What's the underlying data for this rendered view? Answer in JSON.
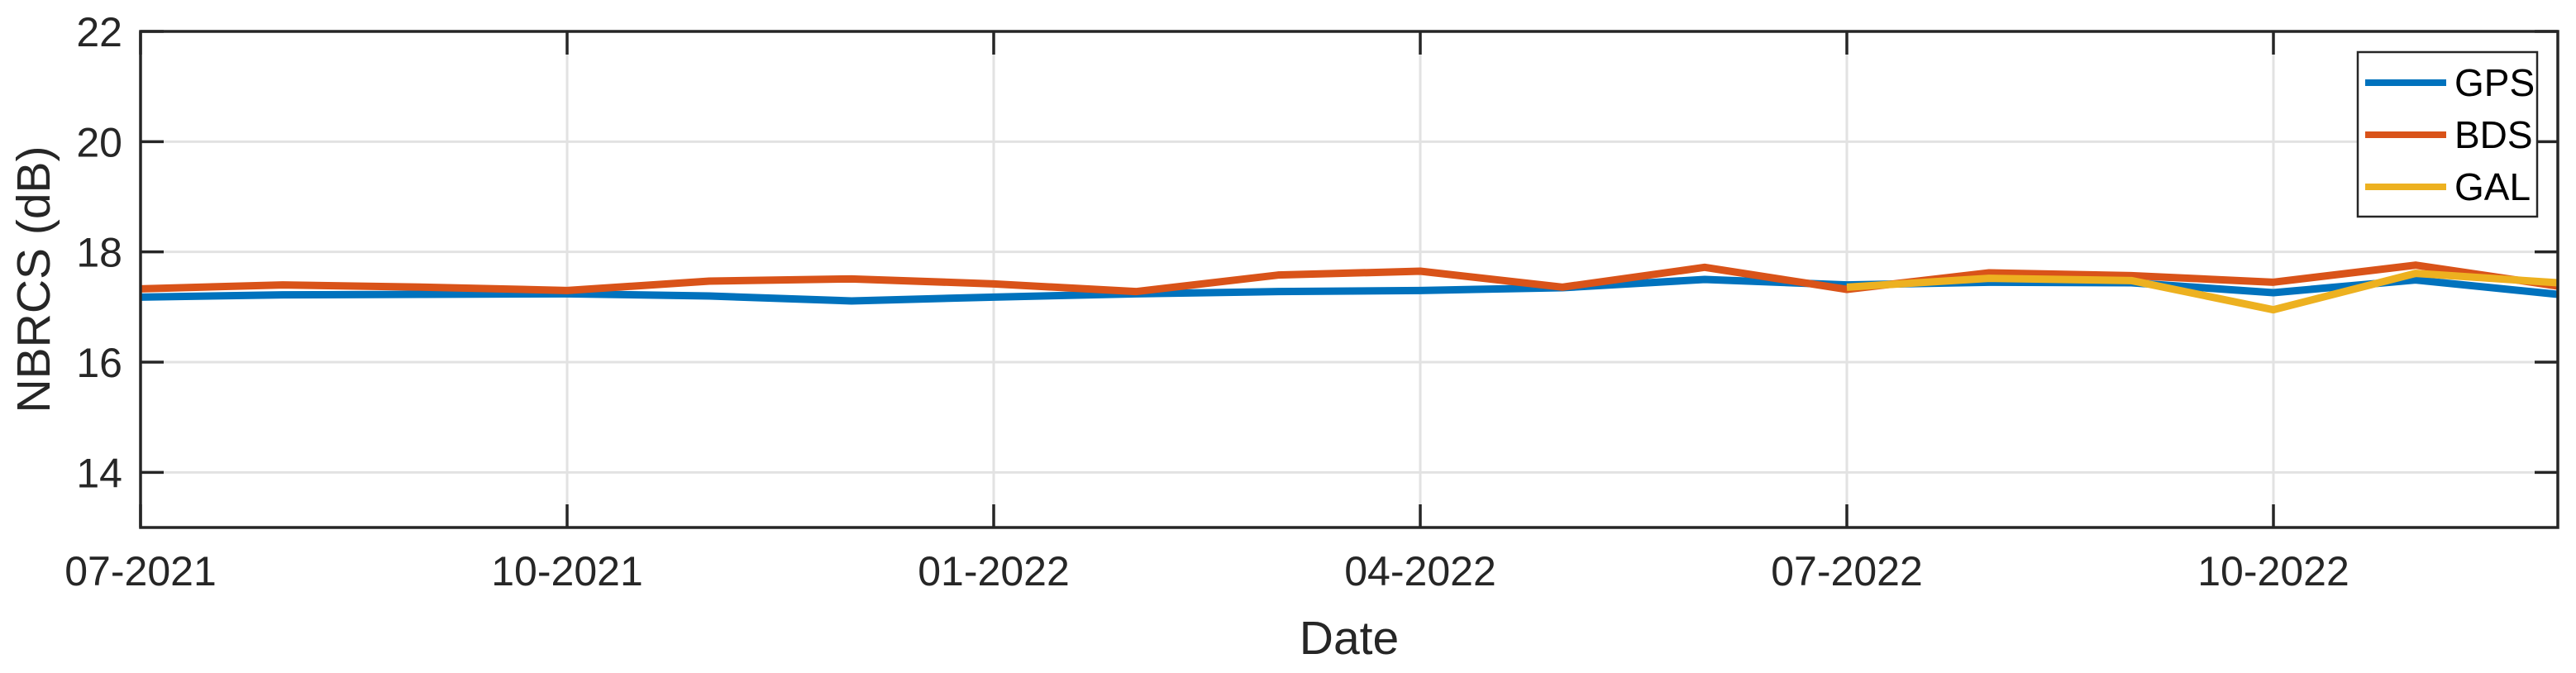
{
  "chart_data": {
    "type": "line",
    "title": "",
    "xlabel": "Date",
    "ylabel": "NBRCS (dB)",
    "ylim": [
      13,
      22
    ],
    "y_ticks": [
      14,
      16,
      18,
      20,
      22
    ],
    "x_tick_labels": [
      "07-2021",
      "10-2021",
      "01-2022",
      "04-2022",
      "07-2022",
      "10-2022"
    ],
    "x_tick_month_index": [
      0,
      3,
      6,
      9,
      12,
      15
    ],
    "months": [
      "07-2021",
      "08-2021",
      "09-2021",
      "10-2021",
      "11-2021",
      "12-2021",
      "01-2022",
      "02-2022",
      "03-2022",
      "04-2022",
      "05-2022",
      "06-2022",
      "07-2022",
      "08-2022",
      "09-2022",
      "10-2022",
      "11-2022",
      "12-2022"
    ],
    "grid": true,
    "legend_position": "top-right",
    "series": [
      {
        "name": "GPS",
        "color": "#0072BD",
        "values": [
          17.18,
          17.22,
          17.23,
          17.24,
          17.2,
          17.11,
          17.18,
          17.24,
          17.28,
          17.3,
          17.35,
          17.5,
          17.4,
          17.45,
          17.44,
          17.26,
          17.49,
          17.23
        ]
      },
      {
        "name": "BDS",
        "color": "#D95319",
        "values": [
          17.33,
          17.4,
          17.36,
          17.3,
          17.47,
          17.51,
          17.42,
          17.28,
          17.58,
          17.65,
          17.36,
          17.72,
          17.32,
          17.62,
          17.57,
          17.45,
          17.76,
          17.38
        ]
      },
      {
        "name": "GAL",
        "color": "#EDB120",
        "values": [
          null,
          null,
          null,
          null,
          null,
          null,
          null,
          null,
          null,
          null,
          null,
          null,
          17.36,
          17.52,
          17.48,
          16.95,
          17.61,
          17.44
        ]
      }
    ]
  }
}
